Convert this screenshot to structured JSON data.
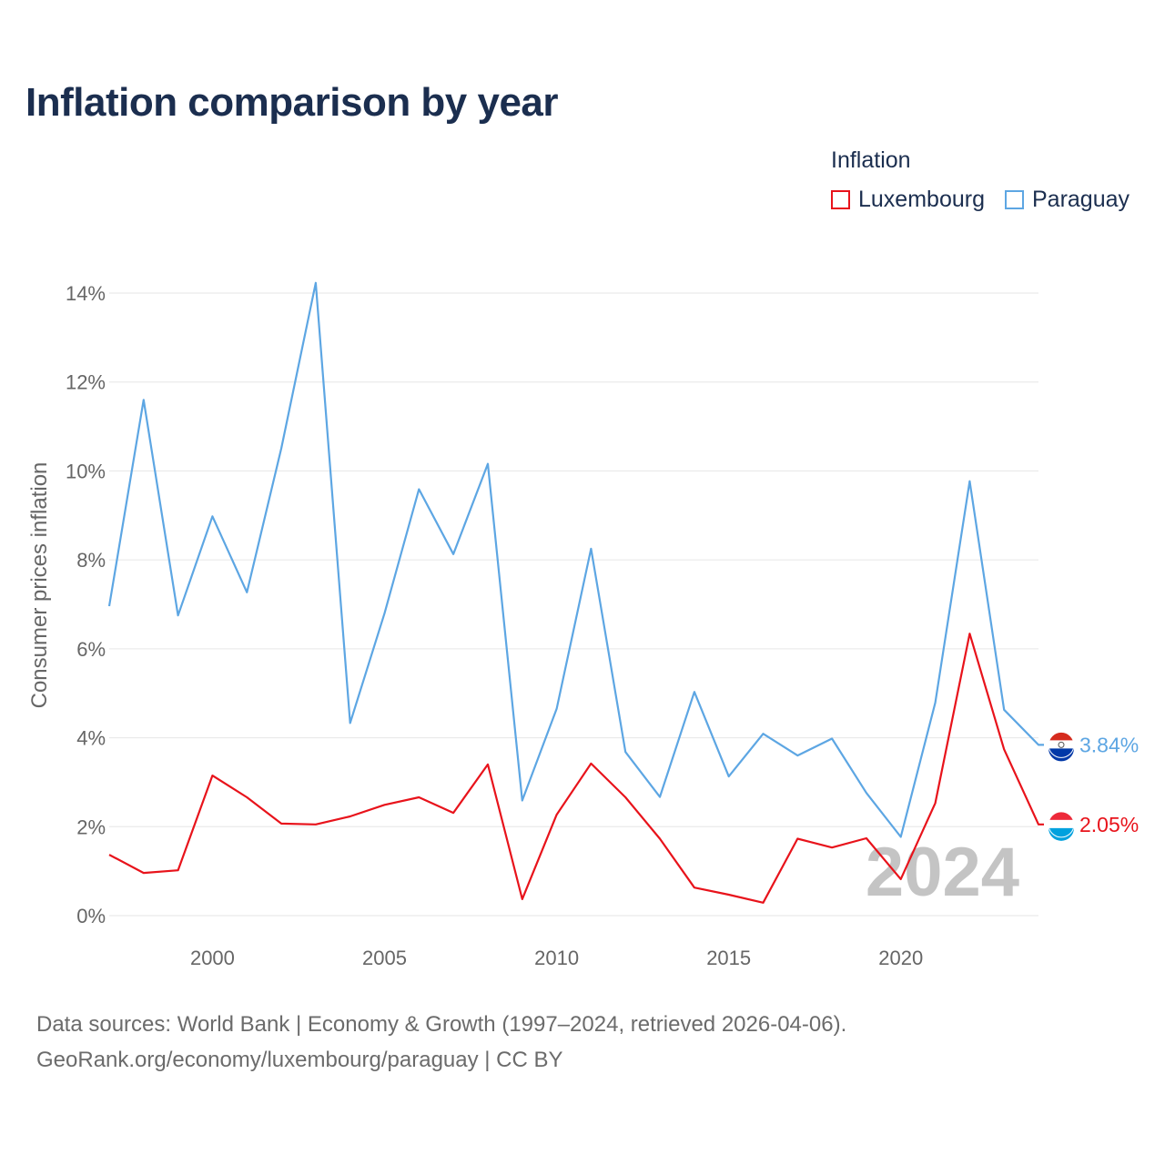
{
  "title": "Inflation comparison by year",
  "legend": {
    "title": "Inflation",
    "items": [
      {
        "label": "Luxembourg",
        "color": "#e8131b"
      },
      {
        "label": "Paraguay",
        "color": "#5da6e3"
      }
    ]
  },
  "footer": {
    "line1": "Data sources: World Bank | Economy & Growth (1997–2024, retrieved 2026-04-06).",
    "line2": "GeoRank.org/economy/luxembourg/paraguay | CC BY"
  },
  "chart_data": {
    "type": "line",
    "ylabel": "Consumer prices inflation",
    "xlabel": "",
    "ylim": [
      0,
      14
    ],
    "xlim": [
      1997,
      2024
    ],
    "yticks": [
      0,
      2,
      4,
      6,
      8,
      10,
      12,
      14
    ],
    "ytick_labels": [
      "0%",
      "2%",
      "4%",
      "6%",
      "8%",
      "10%",
      "12%",
      "14%"
    ],
    "xticks": [
      2000,
      2005,
      2010,
      2015,
      2020
    ],
    "xtick_labels": [
      "2000",
      "2005",
      "2010",
      "2015",
      "2020"
    ],
    "x": [
      1997,
      1998,
      1999,
      2000,
      2001,
      2002,
      2003,
      2004,
      2005,
      2006,
      2007,
      2008,
      2009,
      2010,
      2011,
      2012,
      2013,
      2014,
      2015,
      2016,
      2017,
      2018,
      2019,
      2020,
      2021,
      2022,
      2023,
      2024
    ],
    "series": [
      {
        "name": "Paraguay",
        "color": "#5da6e3",
        "values": [
          6.96,
          11.6,
          6.75,
          8.98,
          7.27,
          10.51,
          14.23,
          4.33,
          6.8,
          9.59,
          8.13,
          10.16,
          2.59,
          4.65,
          8.25,
          3.68,
          2.67,
          5.03,
          3.13,
          4.09,
          3.6,
          3.98,
          2.76,
          1.77,
          4.79,
          9.77,
          4.63,
          3.84
        ],
        "end_label": "3.84%"
      },
      {
        "name": "Luxembourg",
        "color": "#e8131b",
        "values": [
          1.37,
          0.96,
          1.02,
          3.15,
          2.66,
          2.07,
          2.05,
          2.23,
          2.49,
          2.66,
          2.31,
          3.4,
          0.37,
          2.27,
          3.42,
          2.66,
          1.73,
          0.63,
          0.47,
          0.29,
          1.73,
          1.53,
          1.74,
          0.82,
          2.53,
          6.34,
          3.74,
          2.05
        ],
        "end_label": "2.05%"
      }
    ],
    "watermark": "2024",
    "grid": true
  }
}
